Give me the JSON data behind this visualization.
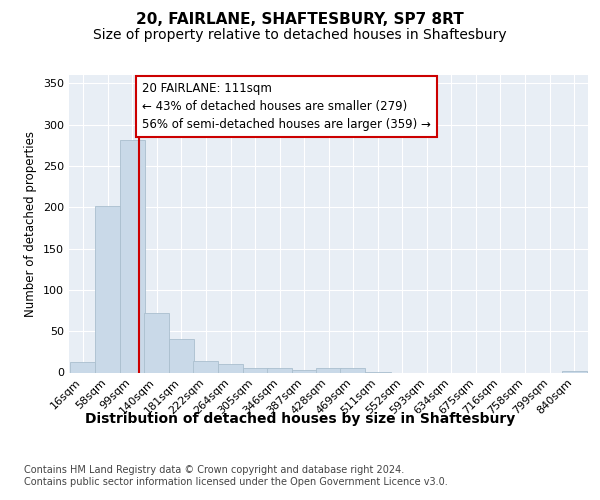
{
  "title1": "20, FAIRLANE, SHAFTESBURY, SP7 8RT",
  "title2": "Size of property relative to detached houses in Shaftesbury",
  "xlabel": "Distribution of detached houses by size in Shaftesbury",
  "ylabel": "Number of detached properties",
  "bin_labels": [
    "16sqm",
    "58sqm",
    "99sqm",
    "140sqm",
    "181sqm",
    "222sqm",
    "264sqm",
    "305sqm",
    "346sqm",
    "387sqm",
    "428sqm",
    "469sqm",
    "511sqm",
    "552sqm",
    "593sqm",
    "634sqm",
    "675sqm",
    "716sqm",
    "758sqm",
    "799sqm",
    "840sqm"
  ],
  "bin_left_edges": [
    16,
    58,
    99,
    140,
    181,
    222,
    264,
    305,
    346,
    387,
    428,
    469,
    511,
    552,
    593,
    634,
    675,
    716,
    758,
    799,
    840
  ],
  "bar_heights": [
    13,
    201,
    281,
    72,
    40,
    14,
    10,
    5,
    5,
    3,
    5,
    5,
    1,
    0,
    0,
    0,
    0,
    0,
    0,
    0,
    2
  ],
  "bar_color": "#c9d9e8",
  "bar_edgecolor": "#aabfce",
  "vline_x": 111,
  "vline_color": "#cc0000",
  "annotation_text": "20 FAIRLANE: 111sqm\n← 43% of detached houses are smaller (279)\n56% of semi-detached houses are larger (359) →",
  "annotation_box_edgecolor": "#cc0000",
  "annotation_box_facecolor": "#ffffff",
  "ylim": [
    0,
    360
  ],
  "yticks": [
    0,
    50,
    100,
    150,
    200,
    250,
    300,
    350
  ],
  "background_color": "#e8eef5",
  "grid_color": "#ffffff",
  "footer_text": "Contains HM Land Registry data © Crown copyright and database right 2024.\nContains public sector information licensed under the Open Government Licence v3.0.",
  "title1_fontsize": 11,
  "title2_fontsize": 10,
  "xlabel_fontsize": 10,
  "ylabel_fontsize": 8.5,
  "tick_fontsize": 8,
  "annotation_fontsize": 8.5,
  "footer_fontsize": 7
}
